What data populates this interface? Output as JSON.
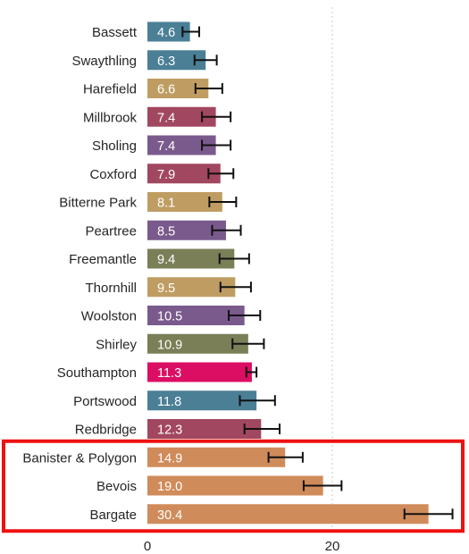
{
  "chart_data": {
    "type": "bar",
    "orientation": "horizontal",
    "title": "",
    "xlabel": "",
    "ylabel": "",
    "xlim": [
      0,
      34
    ],
    "x_ticks": [
      0,
      20
    ],
    "grid": "vertical dotted gridlines at x ticks",
    "categories": [
      "Bassett",
      "Swaythling",
      "Harefield",
      "Millbrook",
      "Sholing",
      "Coxford",
      "Bitterne Park",
      "Peartree",
      "Freemantle",
      "Thornhill",
      "Woolston",
      "Shirley",
      "Southampton",
      "Portswood",
      "Redbridge",
      "Banister & Polygon",
      "Bevois",
      "Bargate"
    ],
    "values": [
      4.6,
      6.3,
      6.6,
      7.4,
      7.4,
      7.9,
      8.1,
      8.5,
      9.4,
      9.5,
      10.5,
      10.9,
      11.3,
      11.8,
      12.3,
      14.9,
      19.0,
      30.4
    ],
    "value_labels": [
      "4.6",
      "6.3",
      "6.6",
      "7.4",
      "7.4",
      "7.9",
      "8.1",
      "8.5",
      "9.4",
      "9.5",
      "10.5",
      "10.9",
      "11.3",
      "11.8",
      "12.3",
      "14.9",
      "19.0",
      "30.4"
    ],
    "error_low": [
      3.8,
      5.1,
      5.2,
      5.9,
      5.9,
      6.6,
      6.7,
      7.0,
      7.8,
      7.9,
      8.8,
      9.2,
      10.7,
      10.0,
      10.5,
      13.1,
      16.9,
      27.8
    ],
    "error_high": [
      5.6,
      7.5,
      8.1,
      9.0,
      9.0,
      9.3,
      9.6,
      10.1,
      11.0,
      11.2,
      12.2,
      12.6,
      11.8,
      13.8,
      14.3,
      16.8,
      21.0,
      33.0
    ],
    "colors": [
      "#4a7f96",
      "#4a7f96",
      "#bf9d62",
      "#a24760",
      "#7a5a8c",
      "#a24760",
      "#bf9d62",
      "#7a5a8c",
      "#7a7f57",
      "#bf9d62",
      "#7a5a8c",
      "#7a7f57",
      "#dc0e63",
      "#4a7f96",
      "#a24760",
      "#d08b5a",
      "#d08b5a",
      "#d08b5a"
    ],
    "highlight": {
      "categories": [
        "Banister & Polygon",
        "Bevois",
        "Bargate"
      ],
      "color": "#ee1111"
    }
  }
}
